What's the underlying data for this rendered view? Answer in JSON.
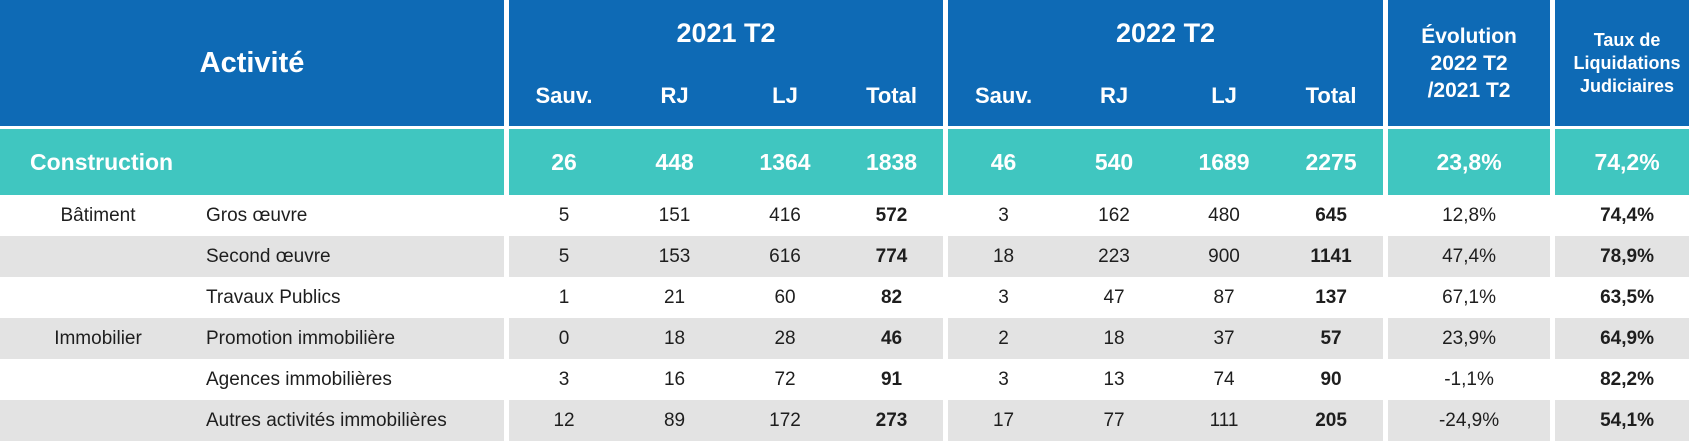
{
  "header": {
    "activity": "Activité",
    "year1": "2021 T2",
    "year2": "2022 T2",
    "evolution_lines": [
      "Évolution",
      "2022 T2",
      "/2021 T2"
    ],
    "taux_lines": [
      "Taux de",
      "Liquidations",
      "Judiciaires"
    ],
    "sub": {
      "sauv": "Sauv.",
      "rj": "RJ",
      "lj": "LJ",
      "total": "Total"
    }
  },
  "construction": {
    "label": "Construction",
    "y1": {
      "sauv": "26",
      "rj": "448",
      "lj": "1364",
      "total": "1838"
    },
    "y2": {
      "sauv": "46",
      "rj": "540",
      "lj": "1689",
      "total": "2275"
    },
    "evolution": "23,8%",
    "taux": "74,2%"
  },
  "rows": [
    {
      "category": "Bâtiment",
      "sub": "Gros œuvre",
      "y1": [
        "5",
        "151",
        "416",
        "572"
      ],
      "y2": [
        "3",
        "162",
        "480",
        "645"
      ],
      "evolution": "12,8%",
      "taux": "74,4%"
    },
    {
      "category": "",
      "sub": "Second œuvre",
      "y1": [
        "5",
        "153",
        "616",
        "774"
      ],
      "y2": [
        "18",
        "223",
        "900",
        "1141"
      ],
      "evolution": "47,4%",
      "taux": "78,9%"
    },
    {
      "category": "",
      "sub": "Travaux Publics",
      "y1": [
        "1",
        "21",
        "60",
        "82"
      ],
      "y2": [
        "3",
        "47",
        "87",
        "137"
      ],
      "evolution": "67,1%",
      "taux": "63,5%"
    },
    {
      "category": "Immobilier",
      "sub": "Promotion immobilière",
      "y1": [
        "0",
        "18",
        "28",
        "46"
      ],
      "y2": [
        "2",
        "18",
        "37",
        "57"
      ],
      "evolution": "23,9%",
      "taux": "64,9%"
    },
    {
      "category": "",
      "sub": "Agences immobilières",
      "y1": [
        "3",
        "16",
        "72",
        "91"
      ],
      "y2": [
        "3",
        "13",
        "74",
        "90"
      ],
      "evolution": "-1,1%",
      "taux": "82,2%"
    },
    {
      "category": "",
      "sub": "Autres activités immobilières",
      "y1": [
        "12",
        "89",
        "172",
        "273"
      ],
      "y2": [
        "17",
        "77",
        "111",
        "205"
      ],
      "evolution": "-24,9%",
      "taux": "54,1%"
    }
  ]
}
